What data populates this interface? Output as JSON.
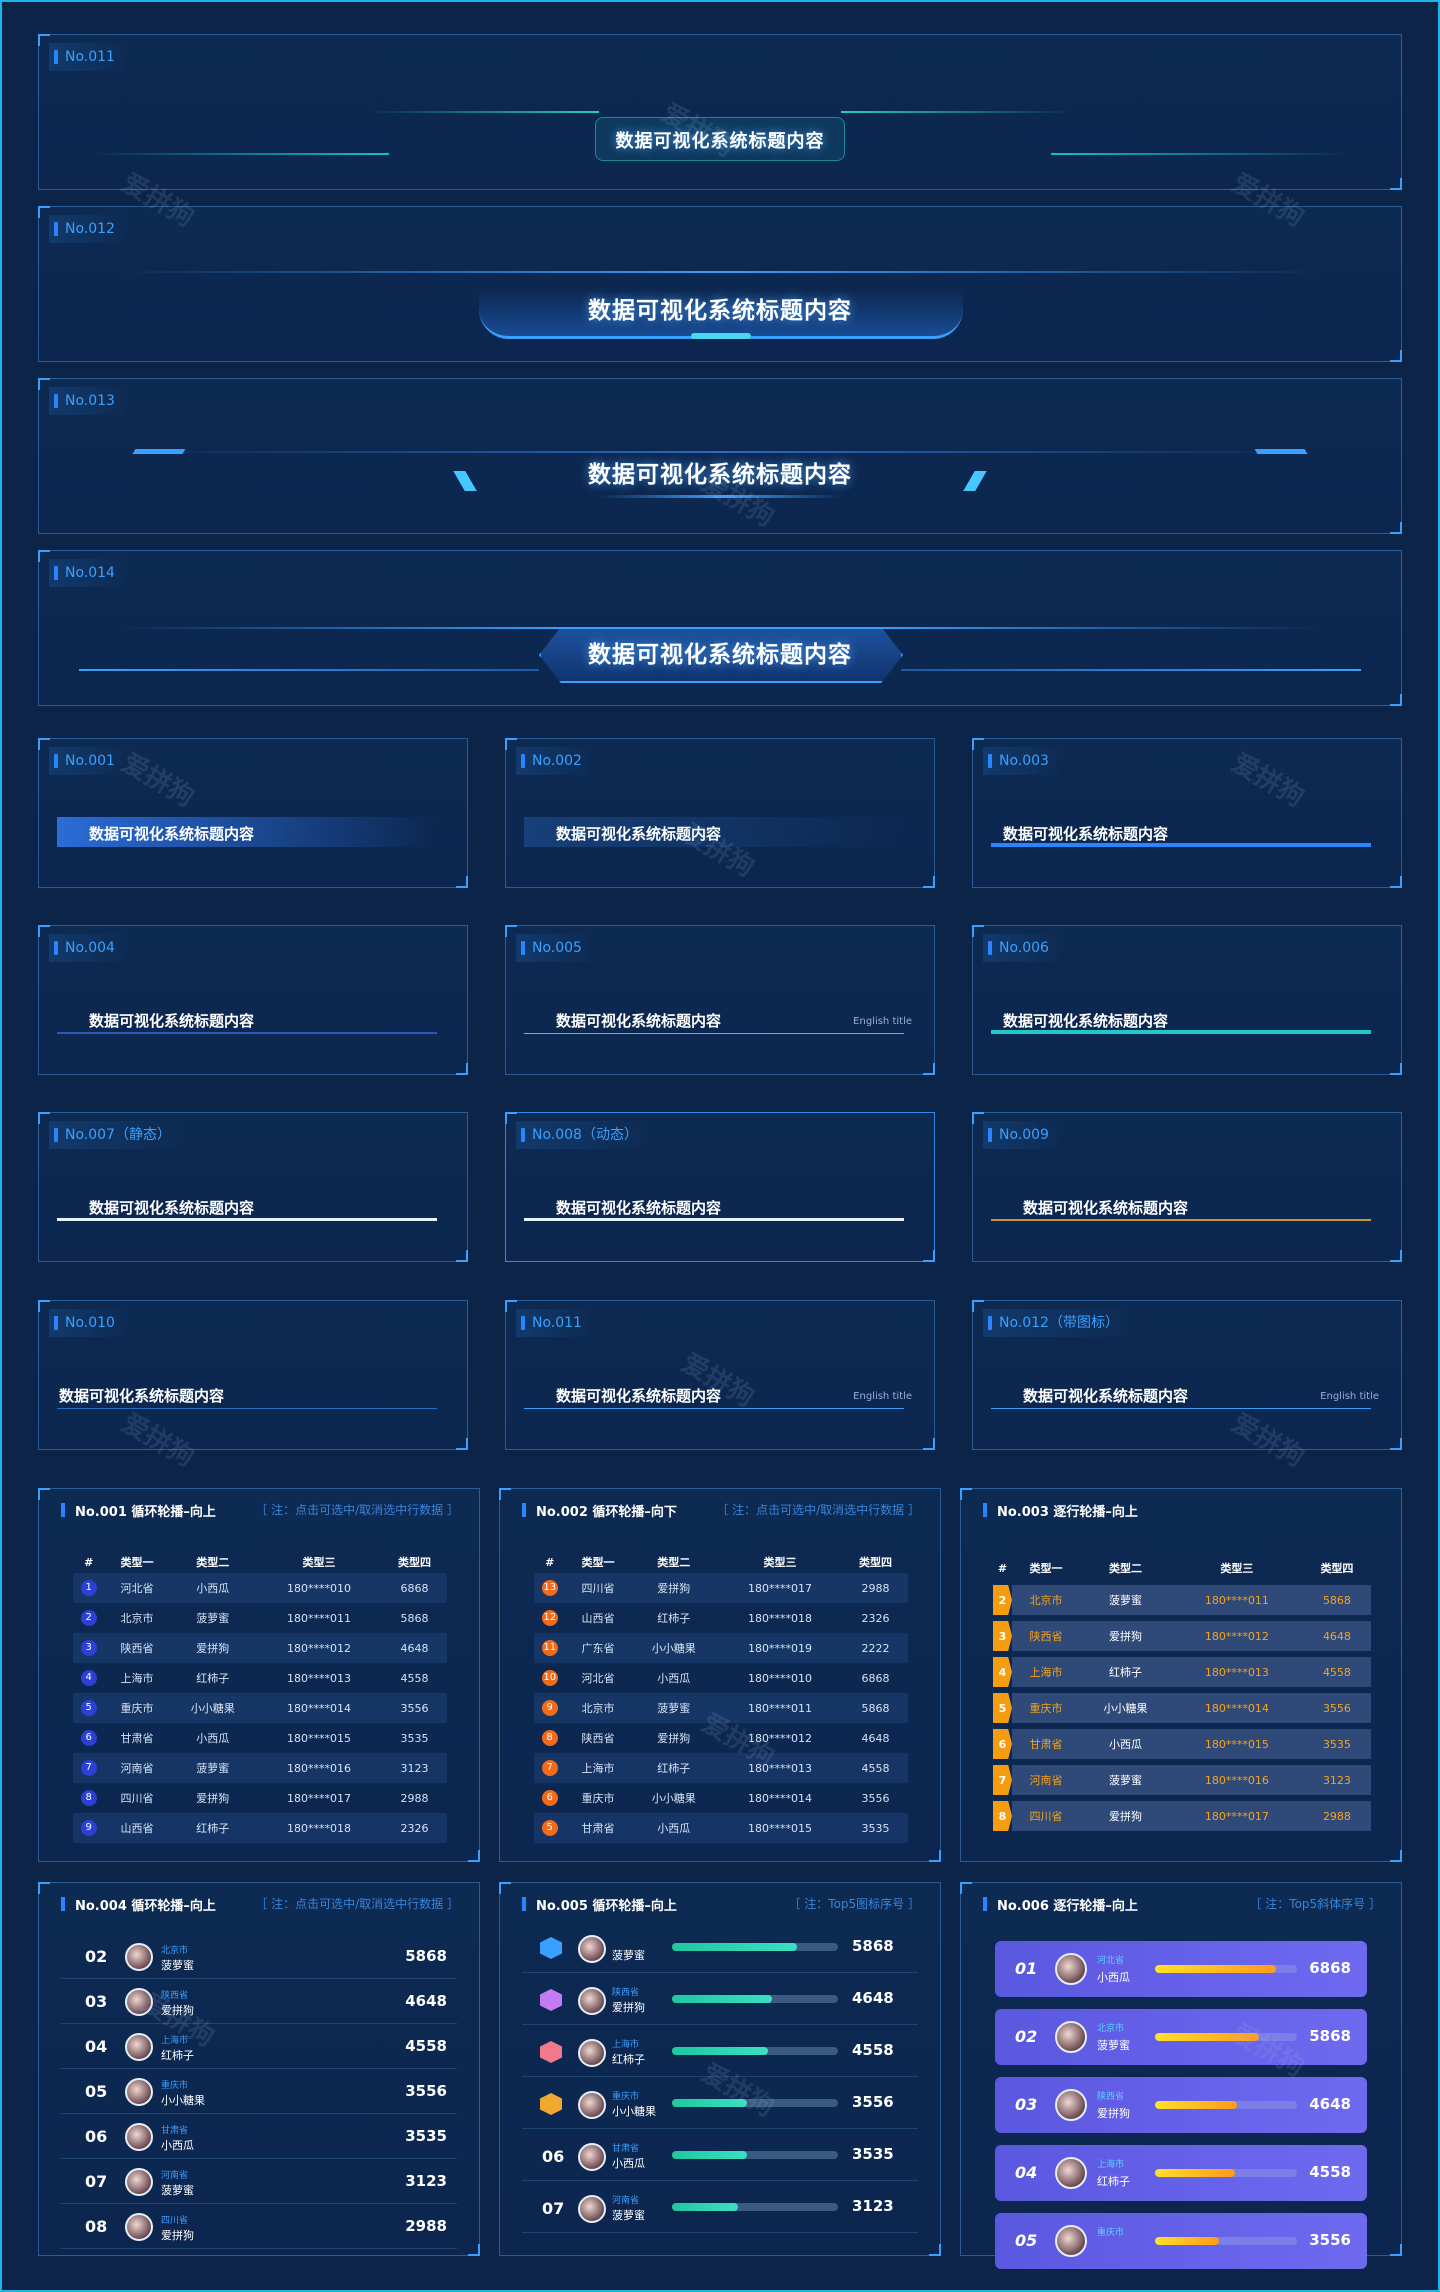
{
  "watermark": "爱拼狗",
  "banners": [
    {
      "tag": "No.011",
      "title": "数据可视化系统标题内容"
    },
    {
      "tag": "No.012",
      "title": "数据可视化系统标题内容"
    },
    {
      "tag": "No.013",
      "title": "数据可视化系统标题内容"
    },
    {
      "tag": "No.014",
      "title": "数据可视化系统标题内容"
    }
  ],
  "subtitles": [
    {
      "tag": "No.001",
      "title": "数据可视化系统标题内容"
    },
    {
      "tag": "No.002",
      "title": "数据可视化系统标题内容"
    },
    {
      "tag": "No.003",
      "title": "数据可视化系统标题内容"
    },
    {
      "tag": "No.004",
      "title": "数据可视化系统标题内容"
    },
    {
      "tag": "No.005",
      "title": "数据可视化系统标题内容",
      "english": "English title"
    },
    {
      "tag": "No.006",
      "title": "数据可视化系统标题内容"
    },
    {
      "tag": "No.007（静态）",
      "title": "数据可视化系统标题内容"
    },
    {
      "tag": "No.008（动态）",
      "title": "数据可视化系统标题内容"
    },
    {
      "tag": "No.009",
      "title": "数据可视化系统标题内容"
    },
    {
      "tag": "No.010",
      "title": "数据可视化系统标题内容"
    },
    {
      "tag": "No.011",
      "title": "数据可视化系统标题内容",
      "english": "English title"
    },
    {
      "tag": "No.012（带图标）",
      "title": "数据可视化系统标题内容",
      "english": "English title"
    }
  ],
  "tables": {
    "t1": {
      "title": "No.001 循环轮播–向上",
      "note": "［ 注：点击可选中/取消选中行数据 ］",
      "headers": [
        "#",
        "类型一",
        "类型二",
        "类型三",
        "类型四"
      ],
      "rows": [
        [
          "1",
          "河北省",
          "小西瓜",
          "180****010",
          "6868"
        ],
        [
          "2",
          "北京市",
          "菠萝蜜",
          "180****011",
          "5868"
        ],
        [
          "3",
          "陕西省",
          "爱拼狗",
          "180****012",
          "4648"
        ],
        [
          "4",
          "上海市",
          "红柿子",
          "180****013",
          "4558"
        ],
        [
          "5",
          "重庆市",
          "小小糖果",
          "180****014",
          "3556"
        ],
        [
          "6",
          "甘肃省",
          "小西瓜",
          "180****015",
          "3535"
        ],
        [
          "7",
          "河南省",
          "菠萝蜜",
          "180****016",
          "3123"
        ],
        [
          "8",
          "四川省",
          "爱拼狗",
          "180****017",
          "2988"
        ],
        [
          "9",
          "山西省",
          "红柿子",
          "180****018",
          "2326"
        ]
      ]
    },
    "t2": {
      "title": "No.002 循环轮播–向下",
      "note": "［ 注：点击可选中/取消选中行数据 ］",
      "headers": [
        "#",
        "类型一",
        "类型二",
        "类型三",
        "类型四"
      ],
      "rows": [
        [
          "13",
          "四川省",
          "爱拼狗",
          "180****017",
          "2988"
        ],
        [
          "12",
          "山西省",
          "红柿子",
          "180****018",
          "2326"
        ],
        [
          "11",
          "广东省",
          "小小糖果",
          "180****019",
          "2222"
        ],
        [
          "10",
          "河北省",
          "小西瓜",
          "180****010",
          "6868"
        ],
        [
          "9",
          "北京市",
          "菠萝蜜",
          "180****011",
          "5868"
        ],
        [
          "8",
          "陕西省",
          "爱拼狗",
          "180****012",
          "4648"
        ],
        [
          "7",
          "上海市",
          "红柿子",
          "180****013",
          "4558"
        ],
        [
          "6",
          "重庆市",
          "小小糖果",
          "180****014",
          "3556"
        ],
        [
          "5",
          "甘肃省",
          "小西瓜",
          "180****015",
          "3535"
        ]
      ]
    },
    "t3": {
      "title": "No.003 逐行轮播–向上",
      "headers": [
        "#",
        "类型一",
        "类型二",
        "类型三",
        "类型四"
      ],
      "rows": [
        [
          "2",
          "北京市",
          "菠萝蜜",
          "180****011",
          "5868"
        ],
        [
          "3",
          "陕西省",
          "爱拼狗",
          "180****012",
          "4648"
        ],
        [
          "4",
          "上海市",
          "红柿子",
          "180****013",
          "4558"
        ],
        [
          "5",
          "重庆市",
          "小小糖果",
          "180****014",
          "3556"
        ],
        [
          "6",
          "甘肃省",
          "小西瓜",
          "180****015",
          "3535"
        ],
        [
          "7",
          "河南省",
          "菠萝蜜",
          "180****016",
          "3123"
        ],
        [
          "8",
          "四川省",
          "爱拼狗",
          "180****017",
          "2988"
        ]
      ]
    }
  },
  "lists": {
    "l4": {
      "title": "No.004 循环轮播–向上",
      "note": "［ 注：点击可选中/取消选中行数据 ］",
      "rows": [
        {
          "no": "02",
          "city": "北京市",
          "nick": "菠萝蜜",
          "val": "5868"
        },
        {
          "no": "03",
          "city": "陕西省",
          "nick": "爱拼狗",
          "val": "4648"
        },
        {
          "no": "04",
          "city": "上海市",
          "nick": "红柿子",
          "val": "4558"
        },
        {
          "no": "05",
          "city": "重庆市",
          "nick": "小小糖果",
          "val": "3556"
        },
        {
          "no": "06",
          "city": "甘肃省",
          "nick": "小西瓜",
          "val": "3535"
        },
        {
          "no": "07",
          "city": "河南省",
          "nick": "菠萝蜜",
          "val": "3123"
        },
        {
          "no": "08",
          "city": "四川省",
          "nick": "爱拼狗",
          "val": "2988"
        }
      ]
    },
    "l5": {
      "title": "No.005 循环轮播–向上",
      "note": "［ 注：Top5图标序号 ］",
      "rows": [
        {
          "no": "",
          "city": "",
          "nick": "菠萝蜜",
          "val": "5868",
          "pct": 0.75
        },
        {
          "no": "",
          "city": "陕西省",
          "nick": "爱拼狗",
          "val": "4648",
          "pct": 0.6
        },
        {
          "no": "",
          "city": "上海市",
          "nick": "红柿子",
          "val": "4558",
          "pct": 0.58
        },
        {
          "no": "",
          "city": "重庆市",
          "nick": "小小糖果",
          "val": "3556",
          "pct": 0.45
        },
        {
          "no": "06",
          "city": "甘肃省",
          "nick": "小西瓜",
          "val": "3535",
          "pct": 0.45
        },
        {
          "no": "07",
          "city": "河南省",
          "nick": "菠萝蜜",
          "val": "3123",
          "pct": 0.4
        }
      ]
    },
    "l6": {
      "title": "No.006 逐行轮播–向上",
      "note": "［ 注：Top5斜体序号 ］",
      "rows": [
        {
          "no": "01",
          "city": "河北省",
          "nick": "小西瓜",
          "val": "6868",
          "pct": 0.85
        },
        {
          "no": "02",
          "city": "北京市",
          "nick": "菠萝蜜",
          "val": "5868",
          "pct": 0.73
        },
        {
          "no": "03",
          "city": "陕西省",
          "nick": "爱拼狗",
          "val": "4648",
          "pct": 0.58
        },
        {
          "no": "04",
          "city": "上海市",
          "nick": "红柿子",
          "val": "4558",
          "pct": 0.56
        },
        {
          "no": "05",
          "city": "重庆市",
          "nick": "",
          "val": "3556",
          "pct": 0.45
        }
      ]
    }
  }
}
